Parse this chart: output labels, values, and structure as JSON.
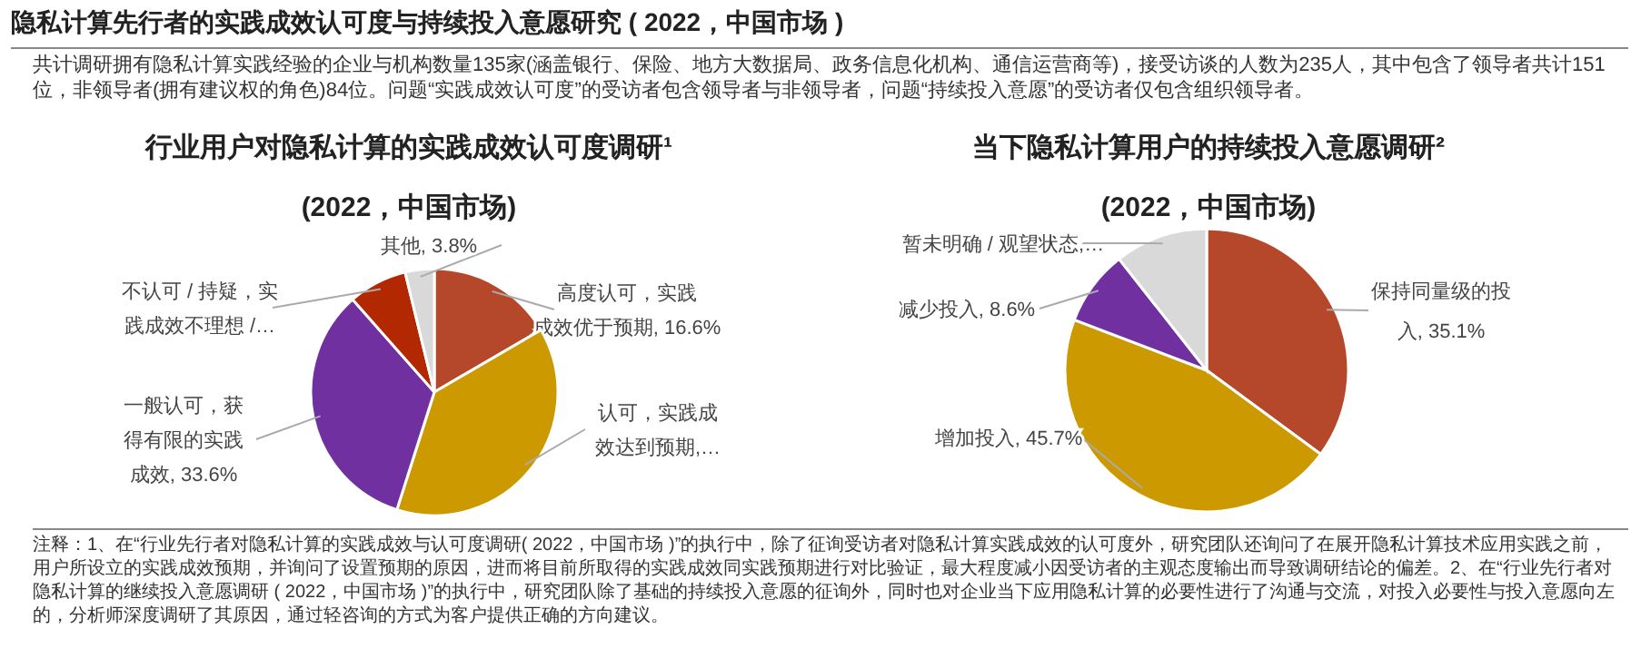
{
  "chart_data": [
    {
      "type": "pie",
      "title": "行业用户对隐私计算的实践成效认可度调研¹",
      "subtitle": "(2022，中国市场)",
      "categories": [
        "高度认可，实践成效优于预期",
        "认可，实践成效达到预期,…",
        "一般认可，获得有限的实践成效",
        "不认可 / 持疑，实践成效不理想 /…",
        "其他"
      ],
      "values": [
        16.6,
        38.3,
        33.6,
        7.7,
        3.8
      ],
      "value_labels": [
        "16.6%",
        null,
        "33.6%",
        null,
        "3.8%"
      ],
      "colors": [
        "#b5482a",
        "#cc9a00",
        "#7030a0",
        "#b22800",
        "#d9d9d9"
      ],
      "annotations": [
        "隐私计算先行者的实践成效认可度与持续投入意愿研究 ( 2022，中国市场 )",
        "共计调研拥有隐私计算实践经验的企业与机构数量135家(涵盖银行、保险、地方大数据局、政务信息化机构、通信运营商等)，接受访谈的人数为235人，其中包含了领导者共计151位，非领导者(拥有建议权的角色)84位。问题“实践成效认可度”的受访者包含领导者与非领导者，问题“持续投入意愿”的受访者仅包含组织领导者。"
      ]
    },
    {
      "type": "pie",
      "title": "当下隐私计算用户的持续投入意愿调研²",
      "subtitle": "(2022，中国市场)",
      "categories": [
        "保持同量级的投入",
        "增加投入",
        "减少投入",
        "暂未明确 / 观望状态,…"
      ],
      "values": [
        35.1,
        45.7,
        8.6,
        10.6
      ],
      "value_labels": [
        "35.1%",
        "45.7%",
        "8.6%",
        null
      ],
      "colors": [
        "#b5482a",
        "#cc9a00",
        "#7030a0",
        "#d9d9d9"
      ],
      "annotations": [
        "注释：1、在“行业先行者对隐私计算的实践成效与认可度调研( 2022，中国市场 )”的执行中，除了征询受访者对隐私计算实践成效的认可度外，研究团队还询问了在展开隐私计算技术应用实践之前，用户所设立的实践成效预期，并询问了设置预期的原因，进而将目前所取得的实践成效同实践预期进行对比验证，最大程度减小因受访者的主观态度输出而导致调研结论的偏差。2、在“行业先行者对隐私计算的继续投入意愿调研 ( 2022，中国市场 )”的执行中，研究团队除了基础的持续投入意愿的征询外，同时也对企业当下应用隐私计算的必要性进行了沟通与交流，对投入必要性与投入意愿向左的，分析师深度调研了其原因，通过轻咨询的方式为客户提供正确的方向建议。"
      ]
    }
  ]
}
